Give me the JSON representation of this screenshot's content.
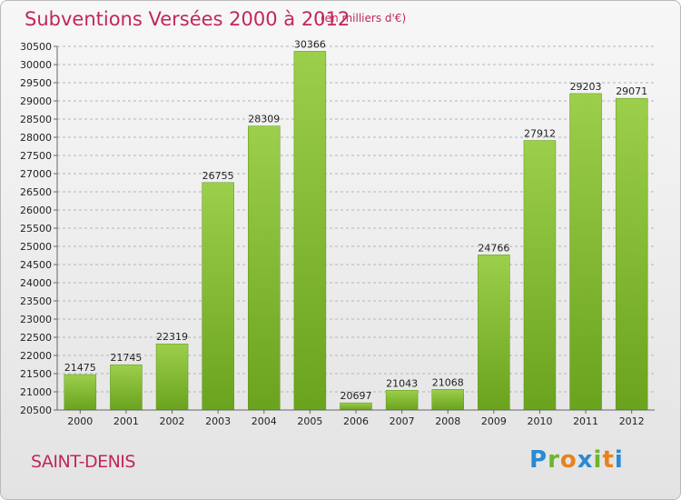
{
  "header": {
    "title": "Subventions Versées 2000 à 2012",
    "subtitle": "(en milliers d'€)"
  },
  "footer": {
    "commune": "SAINT-DENIS",
    "logo": "Proxiti"
  },
  "colors": {
    "bar_light": "#9ccf4b",
    "bar_dark": "#6aa31e",
    "accent": "#c1275a",
    "grid": "#b5b5b5"
  },
  "chart_data": {
    "type": "bar",
    "categories": [
      "2000",
      "2001",
      "2002",
      "2003",
      "2004",
      "2005",
      "2006",
      "2007",
      "2008",
      "2009",
      "2010",
      "2011",
      "2012"
    ],
    "values": [
      21475,
      21745,
      22319,
      26755,
      28309,
      30366,
      20697,
      21043,
      21068,
      24766,
      27912,
      29203,
      29071
    ],
    "ylim": [
      20500,
      30500
    ],
    "yticks": [
      20500,
      21000,
      21500,
      22000,
      22500,
      23000,
      23500,
      24000,
      24500,
      25000,
      25500,
      26000,
      26500,
      27000,
      27500,
      28000,
      28500,
      29000,
      29500,
      30000,
      30500
    ],
    "grid": true,
    "title": "Subventions Versées 2000 à 2012",
    "xlabel": "",
    "ylabel": ""
  }
}
